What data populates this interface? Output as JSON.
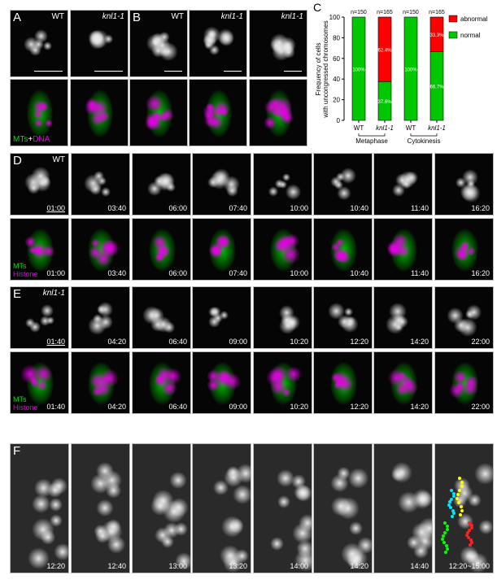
{
  "panel_letters": {
    "A": "A",
    "B": "B",
    "C": "C",
    "D": "D",
    "E": "E",
    "F": "F"
  },
  "panel_AB": {
    "genotypes": [
      "WT",
      "knl1-1",
      "WT",
      "knl1-1",
      "knl1-1"
    ],
    "merge_label_mts": "MTs",
    "merge_label_plus": "+",
    "merge_label_dna": "DNA"
  },
  "panel_D": {
    "genotype": "WT",
    "times": [
      "01:00",
      "03:40",
      "06:00",
      "07:40",
      "10:00",
      "10:40",
      "11:40",
      "16:20"
    ],
    "label_mts": "MTs",
    "label_histone": "Histone"
  },
  "panel_E": {
    "genotype": "knl1-1",
    "times": [
      "01:40",
      "04:20",
      "06:40",
      "09:00",
      "10:20",
      "12:20",
      "14:20",
      "22:00"
    ],
    "label_mts": "MTs",
    "label_histone": "Histone"
  },
  "panel_F": {
    "times": [
      "12:20",
      "12:40",
      "13:00",
      "13:20",
      "14:00",
      "14:20",
      "14:40",
      "12:20~15:00"
    ],
    "track_colors": [
      "#ffff00",
      "#00e5ff",
      "#00ff00",
      "#ff2020"
    ]
  },
  "colors": {
    "mts": "#00e000",
    "dna": "#e000e0",
    "normal": "#00c800",
    "abnormal": "#ff0000"
  },
  "chart_data": {
    "type": "bar",
    "stacked": true,
    "ylabel": "Frequency of cells with uncongressed chromosomes",
    "ylim": [
      0,
      100
    ],
    "yticks": [
      "0",
      "20",
      "40",
      "60",
      "80",
      "100"
    ],
    "categories": [
      "WT",
      "knl1-1",
      "WT",
      "knl1-1"
    ],
    "groups": [
      "Metaphase",
      "Cytokinesis"
    ],
    "n_labels": [
      "n=150",
      "n=165",
      "n=150",
      "n=165"
    ],
    "series": [
      {
        "name": "normal",
        "values": [
          100,
          37.6,
          100,
          66.7
        ],
        "labels": [
          "100%",
          "37.6%",
          "100%",
          "66.7%"
        ],
        "color": "#00c800"
      },
      {
        "name": "abnormal",
        "values": [
          0,
          62.4,
          0,
          33.3
        ],
        "labels": [
          "",
          "62.4%",
          "",
          "33.3%"
        ],
        "color": "#ff0000"
      }
    ],
    "legend_position": "top-right"
  }
}
